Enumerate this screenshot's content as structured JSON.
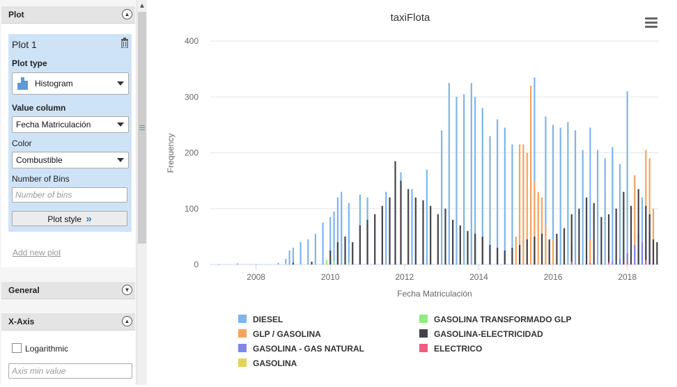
{
  "panel": {
    "plot_section": {
      "title": "Plot"
    },
    "plot_card": {
      "name": "Plot 1",
      "plot_type_label": "Plot type",
      "plot_type_value": "Histogram",
      "value_column_label": "Value column",
      "value_column_value": "Fecha Matriculación",
      "color_label": "Color",
      "color_value": "Combustible",
      "bins_label": "Number of Bins",
      "bins_placeholder": "Number of bins",
      "plot_style_label": "Plot style"
    },
    "add_new_plot": "Add new plot",
    "general_section": {
      "title": "General"
    },
    "xaxis_section": {
      "title": "X-Axis",
      "logarithmic_label": "Logarithmic",
      "axis_min_placeholder": "Axis min value"
    }
  },
  "chart_data": {
    "type": "bar",
    "title": "taxiFlota",
    "xlabel": "Fecha Matriculación",
    "ylabel": "Frequency",
    "xlim": [
      2006.75,
      2018.85
    ],
    "ylim": [
      0,
      400
    ],
    "x_ticks": [
      2008,
      2010,
      2012,
      2014,
      2016,
      2018
    ],
    "y_ticks": [
      0,
      100,
      200,
      300,
      400
    ],
    "grid": true,
    "legend_position": "bottom",
    "series": [
      {
        "name": "DIESEL",
        "color": "#7cb5ec",
        "points": [
          [
            2007.0,
            1
          ],
          [
            2007.5,
            2
          ],
          [
            2008.0,
            1
          ],
          [
            2008.6,
            3
          ],
          [
            2008.8,
            10
          ],
          [
            2008.9,
            25
          ],
          [
            2009.0,
            30
          ],
          [
            2009.2,
            40
          ],
          [
            2009.4,
            45
          ],
          [
            2009.6,
            55
          ],
          [
            2009.8,
            75
          ],
          [
            2010.0,
            85
          ],
          [
            2010.1,
            95
          ],
          [
            2010.2,
            120
          ],
          [
            2010.3,
            130
          ],
          [
            2010.5,
            110
          ],
          [
            2010.8,
            125
          ],
          [
            2011.0,
            120
          ],
          [
            2011.5,
            130
          ],
          [
            2011.9,
            165
          ],
          [
            2012.2,
            135
          ],
          [
            2012.6,
            170
          ],
          [
            2013.0,
            240
          ],
          [
            2013.2,
            325
          ],
          [
            2013.4,
            300
          ],
          [
            2013.6,
            305
          ],
          [
            2013.8,
            325
          ],
          [
            2013.9,
            300
          ],
          [
            2014.1,
            280
          ],
          [
            2014.3,
            230
          ],
          [
            2014.5,
            260
          ],
          [
            2014.7,
            245
          ],
          [
            2014.9,
            215
          ],
          [
            2015.2,
            205
          ],
          [
            2015.5,
            335
          ],
          [
            2015.8,
            265
          ],
          [
            2016.0,
            250
          ],
          [
            2016.2,
            245
          ],
          [
            2016.4,
            255
          ],
          [
            2016.6,
            240
          ],
          [
            2016.8,
            205
          ],
          [
            2017.0,
            245
          ],
          [
            2017.2,
            205
          ],
          [
            2017.4,
            190
          ],
          [
            2017.6,
            210
          ],
          [
            2017.8,
            180
          ],
          [
            2018.0,
            310
          ],
          [
            2018.2,
            160
          ],
          [
            2018.4,
            120
          ]
        ]
      },
      {
        "name": "GLP / GASOLINA",
        "color": "#f7a35c",
        "points": [
          [
            2015.0,
            50
          ],
          [
            2015.1,
            215
          ],
          [
            2015.2,
            215
          ],
          [
            2015.3,
            200
          ],
          [
            2015.4,
            320
          ],
          [
            2015.5,
            150
          ],
          [
            2015.6,
            130
          ],
          [
            2015.7,
            120
          ],
          [
            2015.8,
            70
          ],
          [
            2016.0,
            45
          ],
          [
            2016.5,
            35
          ],
          [
            2017.0,
            45
          ],
          [
            2018.2,
            160
          ],
          [
            2018.5,
            205
          ],
          [
            2018.6,
            190
          ],
          [
            2018.7,
            100
          ]
        ]
      },
      {
        "name": "GASOLINA - GAS NATURAL",
        "color": "#8085e9",
        "points": [
          [
            2017.6,
            5
          ],
          [
            2017.8,
            10
          ],
          [
            2018.0,
            20
          ],
          [
            2018.2,
            35
          ],
          [
            2018.3,
            55
          ],
          [
            2018.4,
            40
          ],
          [
            2018.5,
            30
          ],
          [
            2018.6,
            60
          ],
          [
            2018.7,
            10
          ]
        ]
      },
      {
        "name": "GASOLINA",
        "color": "#e4d354",
        "points": [
          [
            2008.8,
            2
          ],
          [
            2009.5,
            1
          ],
          [
            2010.0,
            4
          ],
          [
            2011.0,
            2
          ],
          [
            2012.0,
            1
          ]
        ]
      },
      {
        "name": "GASOLINA TRANSFORMADO GLP",
        "color": "#90ed7d",
        "points": [
          [
            2009.9,
            8
          ],
          [
            2010.0,
            12
          ],
          [
            2010.1,
            6
          ],
          [
            2010.5,
            3
          ]
        ]
      },
      {
        "name": "GASOLINA-ELECTRICIDAD",
        "color": "#434348",
        "points": [
          [
            2009.0,
            3
          ],
          [
            2009.5,
            5
          ],
          [
            2010.0,
            25
          ],
          [
            2010.2,
            40
          ],
          [
            2010.4,
            50
          ],
          [
            2010.6,
            40
          ],
          [
            2010.8,
            70
          ],
          [
            2011.0,
            80
          ],
          [
            2011.2,
            90
          ],
          [
            2011.4,
            105
          ],
          [
            2011.6,
            120
          ],
          [
            2011.75,
            185
          ],
          [
            2011.9,
            150
          ],
          [
            2012.1,
            135
          ],
          [
            2012.3,
            120
          ],
          [
            2012.5,
            115
          ],
          [
            2012.7,
            105
          ],
          [
            2012.9,
            90
          ],
          [
            2013.1,
            100
          ],
          [
            2013.3,
            80
          ],
          [
            2013.5,
            70
          ],
          [
            2013.7,
            60
          ],
          [
            2013.9,
            55
          ],
          [
            2014.1,
            50
          ],
          [
            2014.3,
            35
          ],
          [
            2014.5,
            30
          ],
          [
            2014.7,
            25
          ],
          [
            2014.9,
            30
          ],
          [
            2015.1,
            35
          ],
          [
            2015.3,
            45
          ],
          [
            2015.5,
            50
          ],
          [
            2015.7,
            55
          ],
          [
            2015.9,
            45
          ],
          [
            2016.1,
            55
          ],
          [
            2016.3,
            65
          ],
          [
            2016.5,
            90
          ],
          [
            2016.7,
            100
          ],
          [
            2016.9,
            120
          ],
          [
            2017.1,
            110
          ],
          [
            2017.3,
            85
          ],
          [
            2017.5,
            90
          ],
          [
            2017.7,
            100
          ],
          [
            2017.9,
            130
          ],
          [
            2018.1,
            105
          ],
          [
            2018.3,
            135
          ],
          [
            2018.5,
            105
          ],
          [
            2018.6,
            90
          ],
          [
            2018.7,
            45
          ],
          [
            2018.8,
            40
          ]
        ]
      },
      {
        "name": "ELECTRICO",
        "color": "#f15c80",
        "points": [
          [
            2016.5,
            5
          ],
          [
            2017.0,
            3
          ],
          [
            2017.5,
            4
          ],
          [
            2018.0,
            6
          ],
          [
            2018.5,
            8
          ]
        ]
      }
    ]
  }
}
